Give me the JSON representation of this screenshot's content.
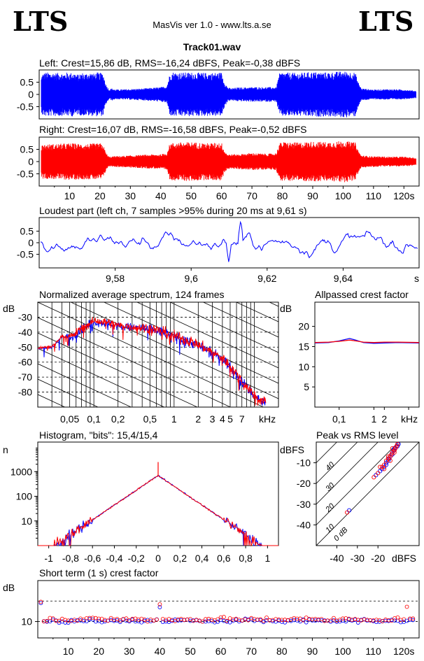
{
  "header": {
    "logo_left": "LTS",
    "logo_right": "LTS",
    "app": "MasVis ver 1.0 - www.lts.a.se",
    "track": "Track01.wav"
  },
  "colors": {
    "left": "#0000ff",
    "right": "#ff0000",
    "frame": "#000000"
  },
  "chart_data": [
    {
      "id": "left_waveform",
      "type": "line",
      "title": "Left: Crest=15,86 dB, RMS=-16,24 dBFS, Peak=-0,38 dBFS",
      "ylim": [
        -1,
        1
      ],
      "yticks": [
        0.5,
        0,
        -0.5
      ],
      "ytick_labels": [
        "0.5",
        "0",
        "-0.5"
      ],
      "xlim": [
        0,
        125
      ],
      "series": [
        {
          "color": "#0000ff",
          "envelope_t": [
            0,
            1,
            2,
            3,
            4,
            5,
            6,
            7,
            8,
            9,
            10,
            11,
            12,
            13,
            14,
            15,
            16,
            17,
            18,
            19,
            20,
            21,
            22,
            23,
            24,
            25,
            30,
            35,
            40,
            42,
            43,
            44,
            45,
            50,
            55,
            60,
            61,
            62,
            63,
            65,
            70,
            75,
            78,
            79,
            80,
            85,
            90,
            95,
            100,
            104,
            105,
            106,
            110,
            115,
            120,
            124
          ],
          "envelope_a": [
            0.3,
            0.85,
            0.9,
            0.9,
            0.88,
            0.9,
            0.88,
            0.9,
            0.85,
            0.9,
            0.88,
            0.9,
            0.86,
            0.8,
            0.9,
            0.85,
            0.88,
            0.9,
            0.85,
            0.9,
            0.88,
            0.88,
            0.4,
            0.2,
            0.25,
            0.2,
            0.22,
            0.25,
            0.3,
            0.35,
            0.85,
            0.92,
            0.9,
            0.9,
            0.88,
            0.9,
            0.5,
            0.3,
            0.25,
            0.28,
            0.3,
            0.3,
            0.3,
            0.85,
            0.9,
            0.88,
            0.92,
            0.9,
            0.95,
            0.9,
            0.5,
            0.25,
            0.2,
            0.22,
            0.2,
            0.15
          ]
        }
      ]
    },
    {
      "id": "right_waveform",
      "type": "line",
      "title": "Right: Crest=16,07 dB, RMS=-16,58 dBFS, Peak=-0,52 dBFS",
      "ylim": [
        -1,
        1
      ],
      "yticks": [
        0.5,
        0,
        -0.5
      ],
      "ytick_labels": [
        "0.5",
        "0",
        "-0.5"
      ],
      "xlim": [
        0,
        125
      ],
      "xticks": [
        10,
        20,
        30,
        40,
        50,
        60,
        70,
        80,
        90,
        100,
        110,
        120
      ],
      "xtick_labels": [
        "10",
        "20",
        "30",
        "40",
        "50",
        "60",
        "70",
        "80",
        "90",
        "100",
        "110",
        "120s"
      ],
      "series": [
        {
          "color": "#ff0000",
          "envelope_t": [
            0,
            1,
            5,
            10,
            15,
            20,
            21,
            22,
            23,
            25,
            30,
            35,
            40,
            42,
            43,
            45,
            50,
            55,
            60,
            61,
            62,
            65,
            70,
            75,
            78,
            79,
            80,
            85,
            90,
            95,
            100,
            104,
            105,
            106,
            110,
            115,
            120,
            124
          ],
          "envelope_a": [
            0.3,
            0.7,
            0.72,
            0.75,
            0.72,
            0.75,
            0.7,
            0.35,
            0.2,
            0.22,
            0.25,
            0.28,
            0.3,
            0.35,
            0.75,
            0.78,
            0.8,
            0.75,
            0.78,
            0.45,
            0.3,
            0.3,
            0.35,
            0.32,
            0.35,
            0.75,
            0.8,
            0.78,
            0.82,
            0.8,
            0.85,
            0.78,
            0.45,
            0.25,
            0.22,
            0.2,
            0.2,
            0.15
          ]
        }
      ]
    },
    {
      "id": "loudest_part",
      "type": "line",
      "title": "Loudest part (left  ch, 7 samples >95% during 20 ms at 9,61 s)",
      "ylim": [
        -1,
        1
      ],
      "yticks": [
        0.5,
        0,
        -0.5
      ],
      "ytick_labels": [
        "0.5",
        "0",
        "-0.5"
      ],
      "xlim": [
        9.56,
        9.66
      ],
      "xticks": [
        9.58,
        9.6,
        9.62,
        9.64
      ],
      "xtick_labels": [
        "9,58",
        "9,6",
        "9,62",
        "9,64"
      ],
      "x_unit": "s",
      "series": [
        {
          "color": "#0000ff"
        }
      ]
    },
    {
      "id": "spectrum",
      "type": "line",
      "title": "Normalized average spectrum, 124 frames",
      "ylabel": "dB",
      "ylim": [
        -90,
        -20
      ],
      "yticks": [
        -30,
        -40,
        -50,
        -60,
        -70,
        -80
      ],
      "ytick_labels": [
        "-30",
        "-40",
        "-50",
        "-60",
        "-70",
        "-80"
      ],
      "xlim_khz": [
        0.02,
        20
      ],
      "xticks_khz": [
        0.05,
        0.1,
        0.2,
        0.5,
        1,
        2,
        3,
        4,
        5,
        7
      ],
      "xtick_labels": [
        "0,05",
        "0,1",
        "0,2",
        "0,5",
        "1",
        "2",
        "3",
        "4",
        "5",
        "7"
      ],
      "x_unit": "kHz",
      "profile_khz": [
        0.02,
        0.03,
        0.04,
        0.05,
        0.07,
        0.1,
        0.15,
        0.2,
        0.3,
        0.5,
        0.7,
        1,
        1.5,
        2,
        3,
        4,
        5,
        6,
        7,
        9,
        12,
        15,
        20
      ],
      "profile_db": [
        -51,
        -50,
        -43,
        -44,
        -38,
        -33,
        -34,
        -36,
        -37,
        -38,
        -40,
        -43,
        -46,
        -49,
        -54,
        -58,
        -63,
        -68,
        -73,
        -80,
        -86,
        -88,
        -90
      ],
      "series": [
        {
          "name_hidden": "left",
          "color": "#0000ff"
        },
        {
          "name_hidden": "right",
          "color": "#ff0000"
        }
      ]
    },
    {
      "id": "allpassed_crest",
      "type": "line",
      "title": "Allpassed crest factor",
      "ylabel": "dB",
      "ylim": [
        0,
        26
      ],
      "yticks": [
        20,
        15,
        10,
        5
      ],
      "ytick_labels": [
        "20",
        "15",
        "10",
        "5"
      ],
      "xticks_khz": [
        0.1,
        1,
        2
      ],
      "xtick_labels": [
        "0,1",
        "1",
        "2"
      ],
      "x_unit": "kHz",
      "series": [
        {
          "color": "#0000ff",
          "x_khz": [
            0.02,
            0.05,
            0.1,
            0.2,
            0.3,
            0.5,
            1,
            2,
            5,
            20
          ],
          "y": [
            15.9,
            16.0,
            16.4,
            17.0,
            16.6,
            16.0,
            15.8,
            15.9,
            16.0,
            15.9
          ]
        },
        {
          "color": "#ff0000",
          "x_khz": [
            0.02,
            0.05,
            0.1,
            0.2,
            0.3,
            0.5,
            1,
            2,
            5,
            20
          ],
          "y": [
            16.0,
            16.1,
            16.3,
            16.6,
            16.4,
            16.1,
            16.0,
            16.1,
            16.1,
            16.0
          ]
        }
      ]
    },
    {
      "id": "histogram",
      "type": "line",
      "title": "Histogram, \"bits\": 15,4/15,4",
      "ylabel": "n",
      "ylog": true,
      "yticks": [
        1000,
        100,
        10
      ],
      "ytick_labels": [
        "1000",
        "100",
        "10"
      ],
      "xlim": [
        -1.1,
        1.1
      ],
      "xticks": [
        -1,
        -0.8,
        -0.6,
        -0.4,
        -0.2,
        0,
        0.2,
        0.4,
        0.6,
        0.8,
        1
      ],
      "xtick_labels": [
        "-1",
        "-0,8",
        "-0,6",
        "-0,4",
        "-0,2",
        "0",
        "0,2",
        "0,4",
        "0,6",
        "0,8",
        "1"
      ],
      "peak_count": 700,
      "series": [
        {
          "color": "#0000ff"
        },
        {
          "color": "#ff0000"
        }
      ]
    },
    {
      "id": "peak_vs_rms",
      "type": "scatter",
      "title": "Peak vs RMS level",
      "ylabel": "dBFS",
      "xlabel": "dBFS",
      "xlim": [
        -50,
        0
      ],
      "ylim": [
        -50,
        0
      ],
      "yticks": [
        -10,
        -20,
        -30,
        -40
      ],
      "ytick_labels": [
        "-10",
        "-20",
        "-30",
        "-40"
      ],
      "xticks": [
        -40,
        -30,
        -20
      ],
      "xtick_labels": [
        "-40",
        "-30",
        "-20"
      ],
      "diagonal_labels": [
        "40",
        "30",
        "20",
        "10",
        "0 dB"
      ],
      "series": [
        {
          "color": "#0000ff",
          "x": [
            -34,
            -21,
            -19,
            -18,
            -17,
            -16,
            -15,
            -14.5,
            -14,
            -13.5,
            -13,
            -12.5,
            -12,
            -11.5,
            -11,
            -10.5,
            -10,
            -16,
            -13,
            -15,
            -12
          ],
          "y": [
            -33,
            -16,
            -14,
            -13,
            -12,
            -10,
            -9,
            -8,
            -7,
            -6,
            -5,
            -4,
            -3,
            -3,
            -2,
            -2,
            -1,
            -11,
            -6,
            -8,
            -4
          ]
        },
        {
          "color": "#ff0000",
          "x": [
            -35,
            -22,
            -20,
            -18,
            -17,
            -16,
            -15,
            -14,
            -13.5,
            -13,
            -12,
            -11.5,
            -11,
            -10.5,
            -17,
            -14,
            -12,
            -19,
            -15,
            -13
          ],
          "y": [
            -34,
            -17,
            -15,
            -12,
            -11,
            -9,
            -8,
            -7,
            -6,
            -5,
            -4,
            -3,
            -2,
            -1,
            -13,
            -9,
            -5,
            -12,
            -7,
            -3
          ]
        }
      ]
    },
    {
      "id": "short_term_crest",
      "type": "scatter",
      "title": "Short term (1 s) crest factor",
      "ylabel": "dB",
      "ylim": [
        6,
        20
      ],
      "yticks": [
        10
      ],
      "ytick_labels": [
        "10"
      ],
      "dashed_levels": [
        15,
        10
      ],
      "xlim": [
        0,
        125
      ],
      "xticks": [
        10,
        20,
        30,
        40,
        50,
        60,
        70,
        80,
        90,
        100,
        110,
        120
      ],
      "xtick_labels": [
        "10",
        "20",
        "30",
        "40",
        "50",
        "60",
        "70",
        "80",
        "90",
        "100",
        "110",
        "120s"
      ],
      "outliers_left": [
        [
          1,
          14.5
        ],
        [
          40,
          13.5
        ]
      ],
      "outliers_right": [
        [
          1,
          14.8
        ],
        [
          40,
          14.2
        ],
        [
          121,
          13.6
        ]
      ],
      "series": [
        {
          "color": "#0000ff"
        },
        {
          "color": "#ff0000"
        }
      ]
    }
  ]
}
